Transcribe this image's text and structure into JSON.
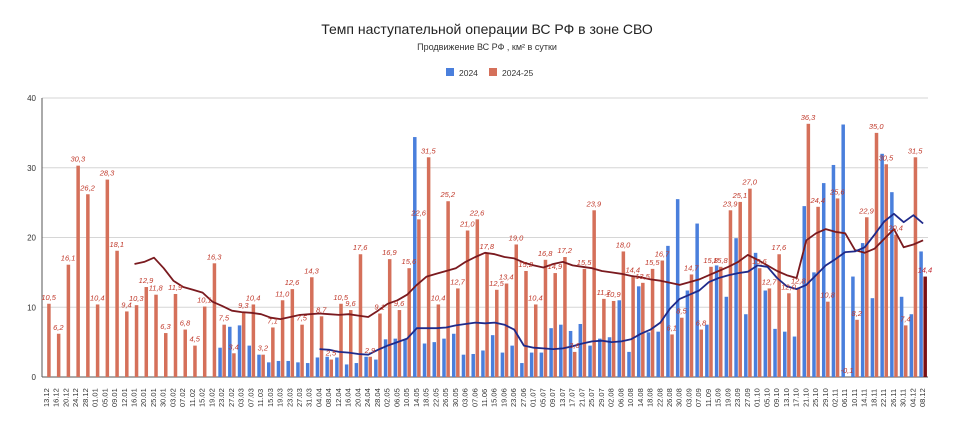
{
  "chart_data": {
    "type": "bar",
    "title": "Темп наступательной операции ВС РФ в зоне СВО",
    "subtitle": "Продвижение ВС РФ , км² в сутки",
    "ylim": [
      0,
      40
    ],
    "yticks": [
      0,
      10,
      20,
      30,
      40
    ],
    "grid": true,
    "legend_position": "top-center",
    "x_tick_labels": [
      "13.12",
      "16.12",
      "20.12",
      "24.12",
      "28.12",
      "01.01",
      "05.01",
      "09.01",
      "12.01",
      "16.01",
      "20.01",
      "25.01",
      "30.01",
      "03.02",
      "07.02",
      "11.02",
      "15.02",
      "19.02",
      "23.02",
      "27.02",
      "03.03",
      "07.03",
      "11.03",
      "15.03",
      "19.03",
      "23.03",
      "27.03",
      "31.03",
      "04.04",
      "08.04",
      "12.04",
      "16.04",
      "20.04",
      "24.04",
      "28.04",
      "02.05",
      "06.05",
      "10.05",
      "14.05",
      "18.05",
      "22.05",
      "26.05",
      "30.05",
      "03.06",
      "07.06",
      "11.06",
      "15.06",
      "19.06",
      "23.06",
      "27.06",
      "01.07",
      "05.07",
      "09.07",
      "13.07",
      "17.07",
      "21.07",
      "25.07",
      "29.07",
      "02.08",
      "06.08",
      "10.08",
      "14.08",
      "18.08",
      "22.08",
      "26.08",
      "30.08",
      "03.09",
      "07.09",
      "11.09",
      "15.09",
      "19.09",
      "23.09",
      "27.09",
      "01.10",
      "05.10",
      "09.10",
      "13.10",
      "17.10",
      "21.10",
      "25.10",
      "29.10",
      "02.11",
      "06.11",
      "10.11",
      "14.11",
      "18.11",
      "22.11",
      "26.11",
      "30.11",
      "04.12",
      "08.12"
    ],
    "series": [
      {
        "name": "2024",
        "color": "#4a7fdc",
        "values": [
          0,
          0,
          0,
          0,
          0,
          0,
          0,
          0,
          0,
          0,
          0,
          0,
          0,
          0,
          0,
          0,
          0,
          0,
          4.2,
          7.2,
          7.4,
          4.5,
          3.2,
          2.1,
          2.3,
          2.3,
          2.1,
          2.0,
          2.8,
          2.9,
          2.8,
          1.8,
          2.0,
          2.9,
          2.5,
          5.4,
          5.5,
          5.4,
          34.4,
          4.8,
          5.0,
          5.5,
          6.2,
          3.2,
          3.3,
          3.8,
          6.0,
          3.5,
          4.5,
          2.0,
          3.5,
          3.5,
          7.0,
          7.5,
          6.6,
          7.6,
          4.5,
          5.5,
          5.7,
          11.0,
          3.6,
          13.0,
          6.4,
          6.5,
          18.8,
          25.5,
          12.4,
          22.0,
          7.5,
          16.0,
          11.5,
          19.9,
          9.0,
          17.8,
          12.4,
          6.9,
          6.5,
          5.8,
          24.5,
          15.0,
          27.8,
          30.4,
          36.2,
          14.4,
          19.2,
          11.3,
          32.0,
          26.5,
          11.5,
          9.0,
          18.0
        ]
      },
      {
        "name": "2024-25",
        "color": "#d5705a",
        "values": [
          10.5,
          6.2,
          16.1,
          30.3,
          26.2,
          10.4,
          28.3,
          18.1,
          9.4,
          10.3,
          12.9,
          11.8,
          6.3,
          11.9,
          6.8,
          4.5,
          10.1,
          16.3,
          7.5,
          3.4,
          9.3,
          10.4,
          3.2,
          7.1,
          11.0,
          12.6,
          7.5,
          14.3,
          8.7,
          2.5,
          10.5,
          9.6,
          17.6,
          2.9,
          9.1,
          16.9,
          9.6,
          15.6,
          22.6,
          31.5,
          10.4,
          25.2,
          12.7,
          21.0,
          22.6,
          17.8,
          12.5,
          13.4,
          19.0,
          15.2,
          10.4,
          16.8,
          14.9,
          17.2,
          3.6,
          15.5,
          23.9,
          11.2,
          10.9,
          18.0,
          14.4,
          13.5,
          15.5,
          16.7,
          6.1,
          8.5,
          14.7,
          6.8,
          15.8,
          15.8,
          23.9,
          25.1,
          27.0,
          15.6,
          12.7,
          17.6,
          12.0,
          12.8,
          36.3,
          24.4,
          10.8,
          25.6,
          -0.1,
          8.2,
          22.9,
          35.0,
          30.5,
          20.4,
          7.4,
          31.5,
          14.4
        ]
      },
      {
        "name": "",
        "color": "#7a0f14",
        "values": [
          null,
          null,
          null,
          null,
          null,
          null,
          null,
          null,
          null,
          null,
          null,
          null,
          null,
          null,
          null,
          null,
          null,
          null,
          null,
          null,
          null,
          null,
          null,
          null,
          null,
          null,
          null,
          null,
          null,
          null,
          null,
          null,
          null,
          null,
          null,
          null,
          null,
          null,
          null,
          null,
          null,
          null,
          null,
          null,
          null,
          null,
          null,
          null,
          null,
          null,
          null,
          null,
          null,
          null,
          null,
          null,
          null,
          null,
          null,
          null,
          null,
          null,
          null,
          null,
          null,
          null,
          null,
          null,
          null,
          null,
          null,
          null,
          null,
          null,
          null,
          null,
          null,
          null,
          null,
          null,
          null,
          null,
          null,
          null,
          null,
          null,
          null,
          null,
          null,
          null,
          14.4
        ]
      }
    ],
    "value_labels": [
      "10,5",
      "6,2",
      "16,1",
      "30,3",
      "26,2",
      "10,4",
      "28,3",
      "18,1",
      "9,4",
      "10,3",
      "12,9",
      "11,8",
      "6,3",
      "11,9",
      "6,8",
      "4,5",
      "10,1",
      "16,3",
      "7,5",
      "3,4",
      "9,3",
      "10,4",
      "3,2",
      "7,1",
      "11,0",
      "12,6",
      "7,5",
      "14,3",
      "8,7",
      "2,5",
      "10,5",
      "9,6",
      "17,6",
      "2,9",
      "9,1",
      "16,9",
      "9,6",
      "15,6",
      "22,6",
      "31,5",
      "10,4",
      "25,2",
      "12,7",
      "21,0",
      "22,6",
      "17,8",
      "12,5",
      "13,4",
      "19,0",
      "15,2",
      "10,4",
      "16,8",
      "14,9",
      "17,2",
      "3,6",
      "15,5",
      "23,9",
      "11,2",
      "10,9",
      "18,0",
      "14,4",
      "13,5",
      "15,5",
      "16,7",
      "6,1",
      "8,5",
      "14,7",
      "6,8",
      "15,8",
      "15,8",
      "23,9",
      "25,1",
      "27,0",
      "15,6",
      "12,7",
      "17,6",
      "12,0",
      "12,8",
      "36,3",
      "24,4",
      "10,8",
      "25,6",
      "-0,1",
      "8,2",
      "22,9",
      "35,0",
      "30,5",
      "20,4",
      "7,4",
      "31,5",
      "14,4"
    ],
    "trend_lines": [
      {
        "color": "#7a1a1f",
        "values": [
          null,
          null,
          null,
          null,
          null,
          null,
          null,
          null,
          null,
          16.2,
          16.5,
          17.1,
          15.6,
          13.8,
          12.9,
          12.5,
          12.1,
          10.8,
          10.2,
          9.5,
          9.3,
          9.2,
          9.0,
          8.5,
          8.3,
          8.6,
          8.9,
          9.0,
          9.1,
          9.0,
          8.9,
          9.0,
          8.8,
          8.6,
          9.5,
          10.5,
          11.0,
          11.8,
          13.2,
          14.4,
          14.8,
          15.2,
          15.6,
          16.5,
          17.2,
          17.8,
          17.6,
          17.2,
          17.0,
          16.4,
          16.0,
          15.7,
          16.2,
          16.5,
          16.0,
          15.8,
          15.6,
          15.2,
          15.0,
          14.8,
          14.5,
          14.3,
          14.0,
          13.8,
          13.5,
          13.2,
          13.6,
          14.0,
          14.6,
          15.2,
          15.8,
          16.5,
          17.5,
          16.8,
          16.0,
          15.2,
          14.6,
          14.2,
          19.6,
          20.6,
          21.2,
          20.8,
          20.6,
          18.2,
          17.8,
          18.4,
          19.8,
          21.2,
          18.6,
          19.0,
          19.6
        ]
      },
      {
        "color": "#1f2a8a",
        "values": [
          null,
          null,
          null,
          null,
          null,
          null,
          null,
          null,
          null,
          null,
          null,
          null,
          null,
          null,
          null,
          null,
          null,
          null,
          null,
          null,
          null,
          null,
          null,
          null,
          null,
          null,
          null,
          null,
          4.0,
          3.9,
          3.6,
          3.5,
          3.3,
          3.2,
          3.9,
          4.5,
          5.0,
          5.5,
          7.0,
          7.0,
          7.0,
          7.1,
          7.4,
          7.6,
          7.8,
          7.7,
          7.8,
          7.5,
          6.8,
          4.5,
          4.2,
          4.1,
          4.0,
          4.1,
          4.4,
          4.8,
          5.1,
          5.2,
          5.0,
          5.1,
          5.4,
          6.2,
          6.8,
          7.8,
          9.8,
          11.2,
          11.8,
          12.4,
          13.6,
          14.2,
          14.6,
          14.9,
          15.1,
          16.0,
          15.8,
          14.2,
          13.0,
          12.6,
          13.2,
          14.6,
          16.0,
          16.9,
          17.9,
          18.0,
          18.6,
          20.4,
          22.3,
          23.4,
          22.2,
          23.2,
          22.0
        ]
      }
    ]
  }
}
